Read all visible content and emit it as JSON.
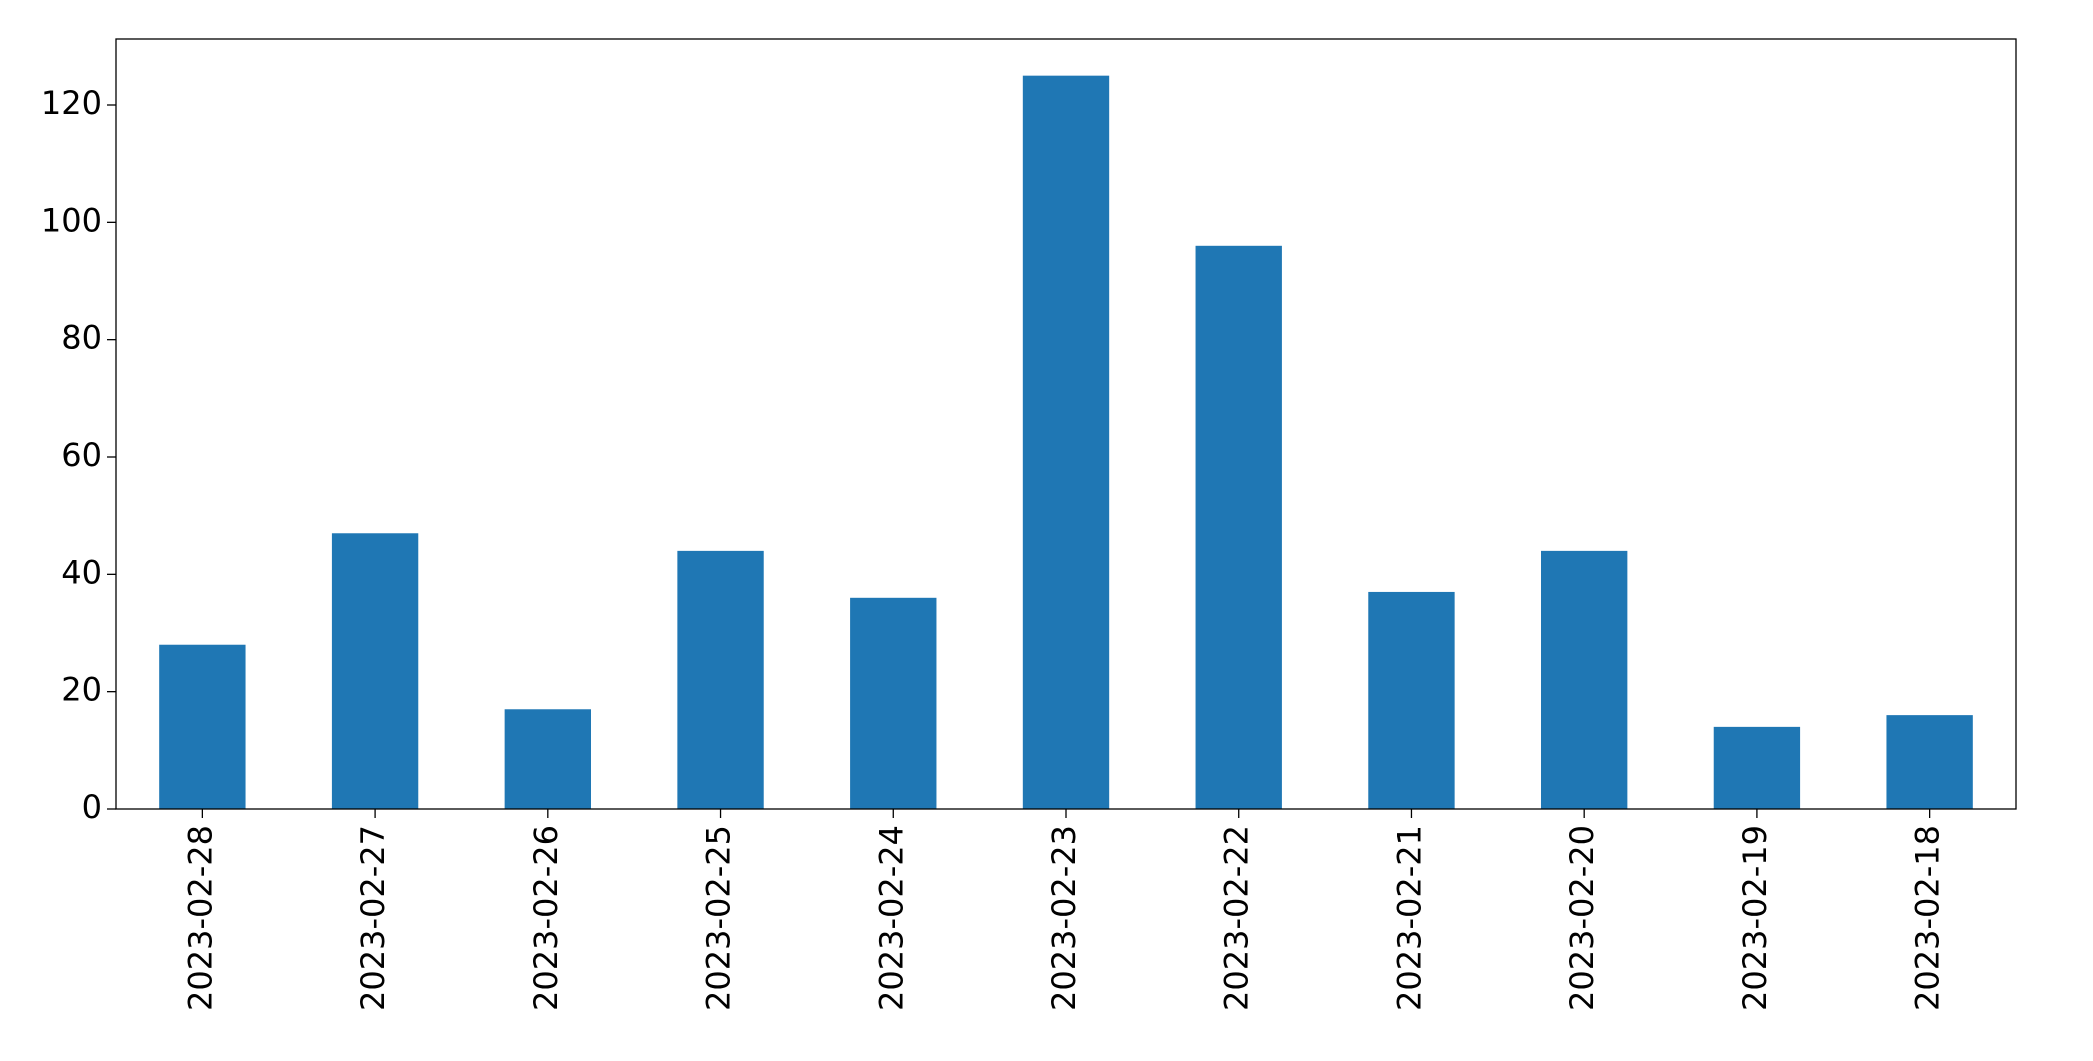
{
  "chart_data": {
    "type": "bar",
    "categories": [
      "2023-02-28",
      "2023-02-27",
      "2023-02-26",
      "2023-02-25",
      "2023-02-24",
      "2023-02-23",
      "2023-02-22",
      "2023-02-21",
      "2023-02-20",
      "2023-02-19",
      "2023-02-18"
    ],
    "values": [
      28,
      47,
      17,
      44,
      36,
      125,
      96,
      37,
      44,
      14,
      16
    ],
    "color": "#1f77b4",
    "ylim": [
      0,
      131.25
    ],
    "yticks": [
      0,
      20,
      40,
      60,
      80,
      100,
      120
    ],
    "grid": false
  }
}
